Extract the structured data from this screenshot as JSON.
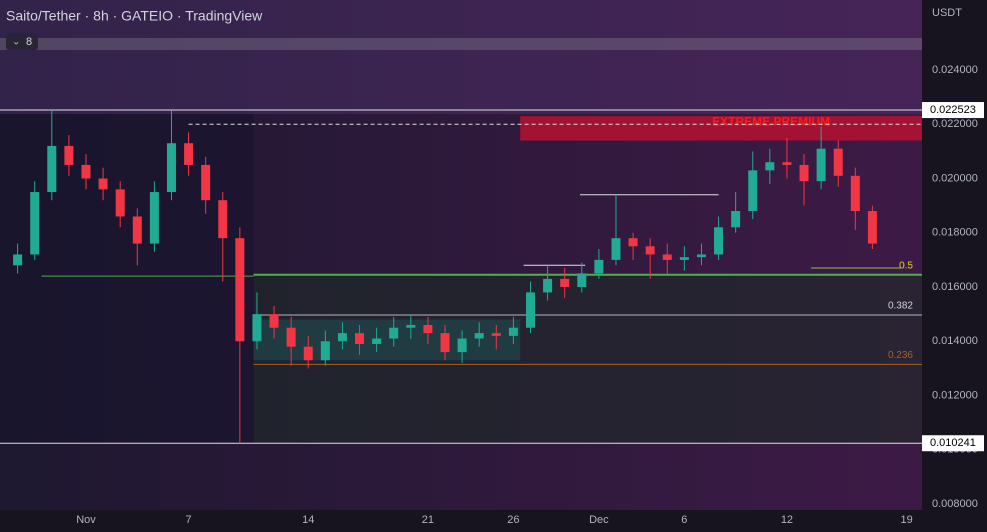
{
  "chart_data": {
    "type": "candlestick",
    "title": "Saito/Tether · 8h · GATEIO · TradingView",
    "badge": "8",
    "currency": "USDT",
    "colors": {
      "up": "#22ab94",
      "down": "#f23645"
    },
    "x": [
      -3,
      -2,
      -1,
      0,
      1,
      2,
      3,
      4,
      5,
      6,
      7,
      8,
      9,
      10,
      11,
      12,
      13,
      14,
      15,
      16,
      17,
      18,
      19,
      20,
      21,
      22,
      23,
      24,
      25,
      26,
      27,
      28,
      29,
      30,
      31,
      32,
      33,
      34,
      35,
      36,
      37,
      38,
      39,
      40,
      41,
      42,
      43,
      44,
      45,
      46,
      47
    ],
    "open": [
      0.0168,
      0.0172,
      0.0195,
      0.0212,
      0.0205,
      0.02,
      0.0196,
      0.0186,
      0.0176,
      0.0195,
      0.0213,
      0.0205,
      0.0192,
      0.0178,
      0.014,
      0.015,
      0.0145,
      0.0138,
      0.0133,
      0.014,
      0.0143,
      0.0139,
      0.0141,
      0.0145,
      0.0146,
      0.0143,
      0.0136,
      0.0141,
      0.0143,
      0.0142,
      0.0145,
      0.0158,
      0.0163,
      0.016,
      0.0165,
      0.017,
      0.0178,
      0.0175,
      0.0172,
      0.017,
      0.0171,
      0.0172,
      0.0182,
      0.0188,
      0.0203,
      0.0206,
      0.0205,
      0.0199,
      0.0211,
      0.0201,
      0.0188
    ],
    "high": [
      0.0176,
      0.0199,
      0.02252,
      0.0216,
      0.0209,
      0.0204,
      0.0199,
      0.0189,
      0.0199,
      0.0225,
      0.0217,
      0.0208,
      0.0195,
      0.0182,
      0.0158,
      0.0153,
      0.0149,
      0.0142,
      0.0144,
      0.0147,
      0.0146,
      0.0145,
      0.0149,
      0.015,
      0.0149,
      0.0146,
      0.0144,
      0.0147,
      0.0146,
      0.0149,
      0.0162,
      0.0168,
      0.0167,
      0.0169,
      0.0174,
      0.0194,
      0.018,
      0.0178,
      0.0176,
      0.0175,
      0.0176,
      0.0186,
      0.0195,
      0.021,
      0.0211,
      0.0215,
      0.0209,
      0.0219,
      0.0214,
      0.0204,
      0.019
    ],
    "low": [
      0.0165,
      0.017,
      0.0192,
      0.0201,
      0.0196,
      0.0192,
      0.0182,
      0.0168,
      0.0173,
      0.0192,
      0.0201,
      0.0187,
      0.0162,
      0.01024,
      0.0137,
      0.0141,
      0.0131,
      0.013,
      0.0131,
      0.0137,
      0.0135,
      0.0136,
      0.0138,
      0.0141,
      0.0139,
      0.0133,
      0.0132,
      0.0138,
      0.0137,
      0.0139,
      0.0143,
      0.0155,
      0.0156,
      0.0158,
      0.0163,
      0.0168,
      0.017,
      0.0163,
      0.0165,
      0.0166,
      0.0168,
      0.017,
      0.018,
      0.0185,
      0.0198,
      0.02,
      0.019,
      0.0196,
      0.0197,
      0.0181,
      0.0174
    ],
    "close": [
      0.0172,
      0.0195,
      0.0212,
      0.0205,
      0.02,
      0.0196,
      0.0186,
      0.0176,
      0.0195,
      0.0213,
      0.0205,
      0.0192,
      0.0178,
      0.014,
      0.015,
      0.0145,
      0.0138,
      0.0133,
      0.014,
      0.0143,
      0.0139,
      0.0141,
      0.0145,
      0.0146,
      0.0143,
      0.0136,
      0.0141,
      0.0143,
      0.0142,
      0.0145,
      0.0158,
      0.0163,
      0.016,
      0.0165,
      0.017,
      0.0178,
      0.0175,
      0.0172,
      0.017,
      0.0171,
      0.0172,
      0.0182,
      0.0188,
      0.0203,
      0.0206,
      0.0205,
      0.0199,
      0.0211,
      0.0201,
      0.0188,
      0.0176
    ],
    "xlim": [
      -4.03,
      49.9
    ],
    "xticks": [
      {
        "value": 1,
        "label": "Nov"
      },
      7,
      14,
      21,
      26,
      {
        "value": 31,
        "label": "Dec"
      },
      {
        "value": 36,
        "label": "6"
      },
      {
        "value": 42,
        "label": "12"
      },
      {
        "value": 49,
        "label": "19"
      }
    ],
    "ylim": [
      0.00778,
      0.02658
    ],
    "yticks": [
      {
        "value": 0.024,
        "label": "0.024000"
      },
      {
        "value": 0.022,
        "label": "0.022000"
      },
      {
        "value": 0.02,
        "label": "0.020000"
      },
      {
        "value": 0.018,
        "label": "0.018000"
      },
      {
        "value": 0.016,
        "label": "0.016000"
      },
      {
        "value": 0.014,
        "label": "0.014000"
      },
      {
        "value": 0.012,
        "label": "0.012000"
      },
      {
        "value": 0.01,
        "label": "0.010000"
      },
      {
        "value": 0.008,
        "label": "0.008000"
      }
    ],
    "price_labels": [
      {
        "value": 0.022523,
        "label": "0.022523"
      },
      {
        "value": 0.010241,
        "label": "0.010241"
      }
    ],
    "zone": {
      "name": "EXTREME PREMIUM",
      "range": [
        0.0214,
        0.0223
      ],
      "x": 26.4
    },
    "levels": [
      {
        "name": "0.5",
        "value": 0.01645,
        "color": "#4caf50"
      },
      {
        "name": "0.382",
        "value": 0.01497,
        "color": "#b2b5be"
      },
      {
        "name": "0.236",
        "value": 0.01315,
        "color": "#a0652a"
      }
    ],
    "rays": [
      {
        "value": 0.0194,
        "x": [
          29.9,
          38
        ]
      },
      {
        "value": 0.0168,
        "x": [
          26.6,
          30.2
        ]
      },
      {
        "value": 0.0167,
        "x": [
          43.4,
          48.8
        ]
      },
      {
        "value": 0.0164,
        "x": [
          -1.6,
          10.8
        ]
      }
    ],
    "extra_label": {
      "name": "0.5",
      "value": 0.0167
    }
  }
}
